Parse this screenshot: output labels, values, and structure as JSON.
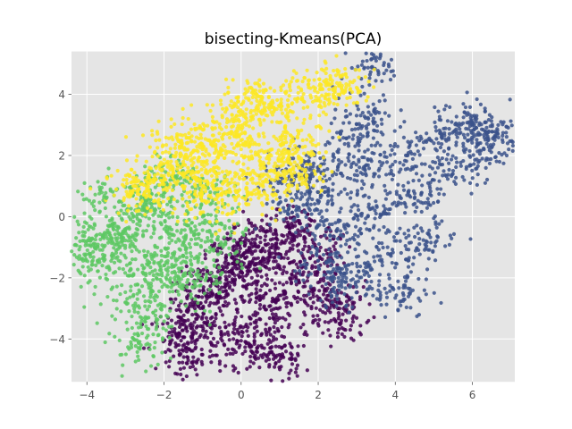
{
  "chart_data": {
    "type": "scatter",
    "title": "bisecting-Kmeans(PCA)",
    "xlabel": "",
    "ylabel": "",
    "xlim": [
      -4.4,
      7.1
    ],
    "ylim": [
      -5.4,
      5.4
    ],
    "x_ticks": [
      -4,
      -2,
      0,
      2,
      4,
      6
    ],
    "y_ticks": [
      -4,
      -2,
      0,
      2,
      4
    ],
    "x_tick_labels": [
      "−4",
      "−2",
      "0",
      "2",
      "4",
      "6"
    ],
    "y_tick_labels": [
      "−4",
      "−2",
      "0",
      "2",
      "4"
    ],
    "grid": true,
    "legend": "none",
    "colors": {
      "background": "#E5E5E5",
      "grid": "#FFFFFF",
      "purple": "#440154",
      "blue": "#3B528B",
      "green": "#5DC863",
      "yellow": "#FDE725"
    },
    "series": [
      {
        "color": "#440154",
        "points": [
          [
            0.3,
            -1.5
          ],
          [
            0.8,
            -1.2
          ],
          [
            -0.2,
            -2.1
          ],
          [
            1.2,
            -0.6
          ],
          [
            0.5,
            -2.6
          ],
          [
            -0.6,
            -1.8
          ],
          [
            1.6,
            -1.9
          ],
          [
            0.1,
            -0.8
          ],
          [
            -1.2,
            -3.0
          ],
          [
            0.9,
            -3.2
          ],
          [
            -0.4,
            -3.6
          ],
          [
            1.9,
            -2.4
          ],
          [
            2.4,
            -2.9
          ],
          [
            0.6,
            -4.3
          ],
          [
            -1.4,
            -4.8
          ],
          [
            -1.6,
            -3.9
          ],
          [
            2.6,
            -3.4
          ],
          [
            1.4,
            -0.3
          ],
          [
            -0.9,
            -2.6
          ],
          [
            0.0,
            -1.3
          ],
          [
            2.2,
            -1.1
          ],
          [
            1.1,
            -4.6
          ],
          [
            -0.1,
            -4.1
          ],
          [
            -1.3,
            -3.5
          ]
        ]
      },
      {
        "color": "#3B528B",
        "points": [
          [
            2.0,
            0.8
          ],
          [
            3.0,
            1.5
          ],
          [
            2.5,
            -0.4
          ],
          [
            1.5,
            0.3
          ],
          [
            3.5,
            0.1
          ],
          [
            4.0,
            1.8
          ],
          [
            2.8,
            2.6
          ],
          [
            1.8,
            1.6
          ],
          [
            3.8,
            -1.0
          ],
          [
            4.5,
            0.6
          ],
          [
            5.0,
            2.4
          ],
          [
            5.5,
            1.5
          ],
          [
            6.3,
            2.2
          ],
          [
            6.6,
            2.6
          ],
          [
            3.4,
            4.9
          ],
          [
            3.2,
            -1.9
          ],
          [
            4.2,
            -2.5
          ],
          [
            2.2,
            -1.5
          ],
          [
            5.6,
            3.0
          ],
          [
            6.1,
            2.9
          ],
          [
            1.3,
            1.2
          ],
          [
            4.8,
            -0.8
          ],
          [
            3.3,
            3.2
          ],
          [
            2.6,
            -2.2
          ]
        ]
      },
      {
        "color": "#5DC863",
        "points": [
          [
            -2.5,
            0.2
          ],
          [
            -3.0,
            -0.4
          ],
          [
            -3.5,
            0.6
          ],
          [
            -1.5,
            -1.3
          ],
          [
            -1.8,
            -0.6
          ],
          [
            -2.2,
            -2.0
          ],
          [
            -1.0,
            -0.2
          ],
          [
            -3.8,
            -1.0
          ],
          [
            -4.0,
            -0.8
          ],
          [
            -2.4,
            -3.3
          ],
          [
            -2.8,
            -2.6
          ],
          [
            -0.8,
            0.8
          ],
          [
            -1.2,
            -2.2
          ],
          [
            -0.5,
            -0.9
          ],
          [
            -3.2,
            -0.7
          ],
          [
            -2.0,
            -1.6
          ],
          [
            -2.6,
            -4.2
          ],
          [
            -1.7,
            1.3
          ],
          [
            -3.6,
            -1.6
          ],
          [
            -2.2,
            0.7
          ]
        ]
      },
      {
        "color": "#FDE725",
        "points": [
          [
            -1.0,
            2.2
          ],
          [
            -1.5,
            1.8
          ],
          [
            -0.5,
            2.6
          ],
          [
            -2.0,
            1.2
          ],
          [
            -2.5,
            0.8
          ],
          [
            -0.2,
            3.1
          ],
          [
            0.4,
            3.5
          ],
          [
            1.0,
            3.6
          ],
          [
            0.8,
            2.2
          ],
          [
            1.2,
            1.8
          ],
          [
            0.2,
            1.4
          ],
          [
            -0.3,
            0.9
          ],
          [
            -0.9,
            0.5
          ],
          [
            1.6,
            2.5
          ],
          [
            1.8,
            4.2
          ],
          [
            2.2,
            4.0
          ],
          [
            2.8,
            4.3
          ],
          [
            -1.8,
            2.6
          ],
          [
            -2.8,
            1.0
          ],
          [
            0.0,
            2.2
          ],
          [
            0.6,
            0.8
          ],
          [
            1.5,
            1.3
          ],
          [
            0.3,
            3.9
          ],
          [
            -1.2,
            1.3
          ]
        ]
      }
    ]
  }
}
